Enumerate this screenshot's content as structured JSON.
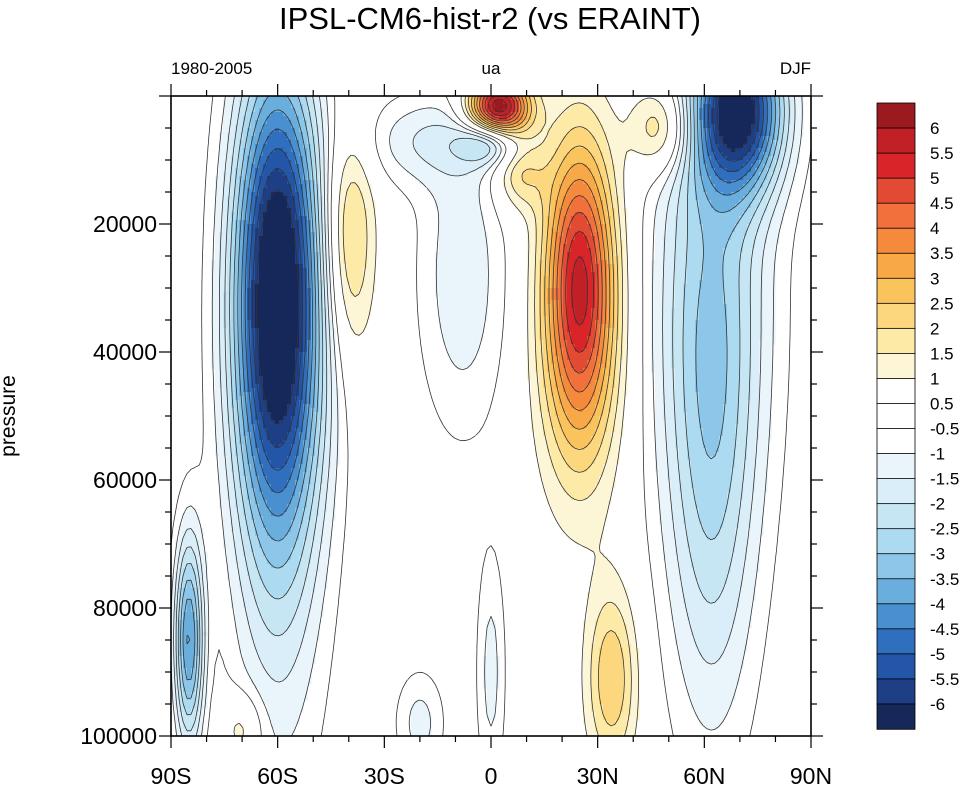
{
  "chart_data": {
    "type": "heatmap",
    "title": "IPSL-CM6-hist-r2 (vs ERAINT)",
    "subtitle_left": "1980-2005",
    "subtitle_center": "ua",
    "subtitle_right": "DJF",
    "ylabel": "pressure",
    "xlabel": "",
    "xlim": [
      -90,
      90
    ],
    "ylim": [
      100000,
      0
    ],
    "x_ticks": [
      {
        "value": -90,
        "label": "90S"
      },
      {
        "value": -60,
        "label": "60S"
      },
      {
        "value": -30,
        "label": "30S"
      },
      {
        "value": 0,
        "label": "0"
      },
      {
        "value": 30,
        "label": "30N"
      },
      {
        "value": 60,
        "label": "60N"
      },
      {
        "value": 90,
        "label": "90N"
      }
    ],
    "y_ticks": [
      {
        "value": 20000,
        "label": "20000"
      },
      {
        "value": 40000,
        "label": "40000"
      },
      {
        "value": 60000,
        "label": "60000"
      },
      {
        "value": 80000,
        "label": "80000"
      },
      {
        "value": 100000,
        "label": "100000"
      }
    ],
    "colorbar": {
      "labels": [
        "6",
        "5.5",
        "5",
        "4.5",
        "4",
        "3.5",
        "3",
        "2.5",
        "2",
        "1.5",
        "1",
        "0.5",
        "-0.5",
        "-1",
        "-1.5",
        "-2",
        "-2.5",
        "-3",
        "-3.5",
        "-4",
        "-4.5",
        "-5",
        "-5.5",
        "-6"
      ],
      "colors": [
        "#9b1a1f",
        "#c22027",
        "#d9252a",
        "#e34a33",
        "#f2703c",
        "#f58a3d",
        "#f9a847",
        "#fbc35c",
        "#fdd77d",
        "#fdeaa6",
        "#fdf6d6",
        "#ffffff",
        "#ffffff",
        "#ffffff",
        "#eaf5fb",
        "#d9eef8",
        "#c6e6f4",
        "#acdaf0",
        "#8cc7ea",
        "#6aaede",
        "#4a8fcf",
        "#2f6fbd",
        "#2356a6",
        "#1e3f85",
        "#16275a"
      ]
    },
    "blobs": [
      {
        "lat": -60,
        "p": 30000,
        "sx": 9,
        "sy": 26000,
        "value": -6.2
      },
      {
        "lat": -60,
        "p": 60000,
        "sx": 10,
        "sy": 38000,
        "value": -1.6
      },
      {
        "lat": -40,
        "p": 22000,
        "sx": 5,
        "sy": 13000,
        "value": 2.0
      },
      {
        "lat": -8,
        "p": 28000,
        "sx": 9,
        "sy": 18000,
        "value": -1.4
      },
      {
        "lat": 25,
        "p": 27000,
        "sx": 7,
        "sy": 15000,
        "value": 4.4
      },
      {
        "lat": 25,
        "p": 45000,
        "sx": 8,
        "sy": 15000,
        "value": 1.6
      },
      {
        "lat": 2,
        "p": 2000,
        "sx": 6,
        "sy": 3500,
        "value": 6.5
      },
      {
        "lat": 48,
        "p": 5000,
        "sx": 6,
        "sy": 5000,
        "value": 2.1
      },
      {
        "lat": 70,
        "p": 2000,
        "sx": 9,
        "sy": 9000,
        "value": -5.5
      },
      {
        "lat": 62,
        "p": 30000,
        "sx": 12,
        "sy": 30000,
        "value": -2.6
      },
      {
        "lat": 62,
        "p": 70000,
        "sx": 9,
        "sy": 28000,
        "value": -1.4
      },
      {
        "lat": 34,
        "p": 91000,
        "sx": 5,
        "sy": 10000,
        "value": 2.0
      },
      {
        "lat": -85,
        "p": 85000,
        "sx": 3,
        "sy": 12000,
        "value": -4.0
      },
      {
        "lat": -20,
        "p": 7000,
        "sx": 12,
        "sy": 5000,
        "value": -1.3
      },
      {
        "lat": 0,
        "p": 7000,
        "sx": 6,
        "sy": 2500,
        "value": -3.0
      },
      {
        "lat": 8,
        "p": 12000,
        "sx": 5,
        "sy": 4000,
        "value": 1.6
      },
      {
        "lat": -70,
        "p": 99000,
        "sx": 4,
        "sy": 4000,
        "value": 1.2
      },
      {
        "lat": -20,
        "p": 98000,
        "sx": 5,
        "sy": 6000,
        "value": -1.2
      },
      {
        "lat": 0,
        "p": 90000,
        "sx": 3,
        "sy": 14000,
        "value": -1.2
      }
    ]
  }
}
